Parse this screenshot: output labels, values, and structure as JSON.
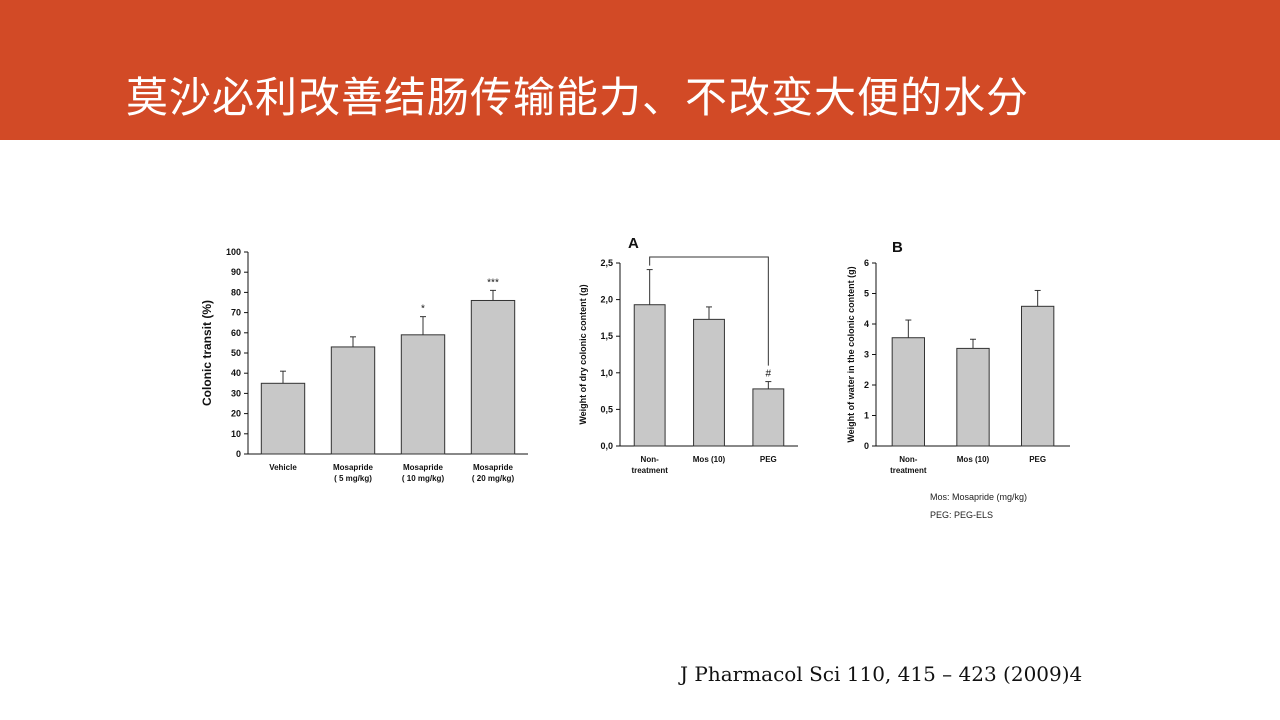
{
  "slide": {
    "title": "莫沙必利改善结肠传输能力、不改变大便的水分",
    "citation": "J Pharmacol Sci 110, 415 – 423 (2009)4",
    "accent_color": "#d24a26"
  },
  "legend_notes": [
    "Mos: Mosapride (mg/kg)",
    "PEG: PEG-ELS"
  ],
  "chart_data": [
    {
      "type": "bar",
      "title": "",
      "ylabel": "Colonic transit (%)",
      "xlabel": "",
      "ylim": [
        0,
        100
      ],
      "yticks": [
        "0",
        "10",
        "20",
        "30",
        "40",
        "50",
        "60",
        "70",
        "80",
        "90",
        "100"
      ],
      "categories": [
        [
          "Vehicle"
        ],
        [
          "Mosapride",
          "( 5 mg/kg)"
        ],
        [
          "Mosapride",
          "( 10 mg/kg)"
        ],
        [
          "Mosapride",
          "( 20 mg/kg)"
        ]
      ],
      "values": [
        35,
        53,
        59,
        76
      ],
      "errors": [
        6,
        5,
        9,
        5
      ],
      "annotations": [
        "",
        "",
        "*",
        "***"
      ],
      "bar_color": "#c8c8c8"
    },
    {
      "type": "bar",
      "title": "A",
      "ylabel": "Weight of dry colonic content (g)",
      "xlabel": "",
      "ylim": [
        0,
        2.5
      ],
      "yticks": [
        "0,0",
        "0,5",
        "1,0",
        "1,5",
        "2,0",
        "2,5"
      ],
      "categories": [
        [
          "Non-",
          "treatment"
        ],
        [
          "Mos (10)"
        ],
        [
          "PEG"
        ]
      ],
      "values": [
        1.93,
        1.73,
        0.78
      ],
      "errors": [
        0.48,
        0.17,
        0.1
      ],
      "annotations": [
        "",
        "",
        "#"
      ],
      "bracket": [
        0,
        2
      ],
      "bar_color": "#c8c8c8"
    },
    {
      "type": "bar",
      "title": "B",
      "ylabel": "Weight of water in the colonic content (g)",
      "xlabel": "",
      "ylim": [
        0,
        6
      ],
      "yticks": [
        "0",
        "1",
        "2",
        "3",
        "4",
        "5",
        "6"
      ],
      "categories": [
        [
          "Non-",
          "treatment"
        ],
        [
          "Mos (10)"
        ],
        [
          "PEG"
        ]
      ],
      "values": [
        3.55,
        3.2,
        4.58
      ],
      "errors": [
        0.58,
        0.3,
        0.52
      ],
      "annotations": [
        "",
        "",
        ""
      ],
      "bar_color": "#c8c8c8"
    }
  ]
}
